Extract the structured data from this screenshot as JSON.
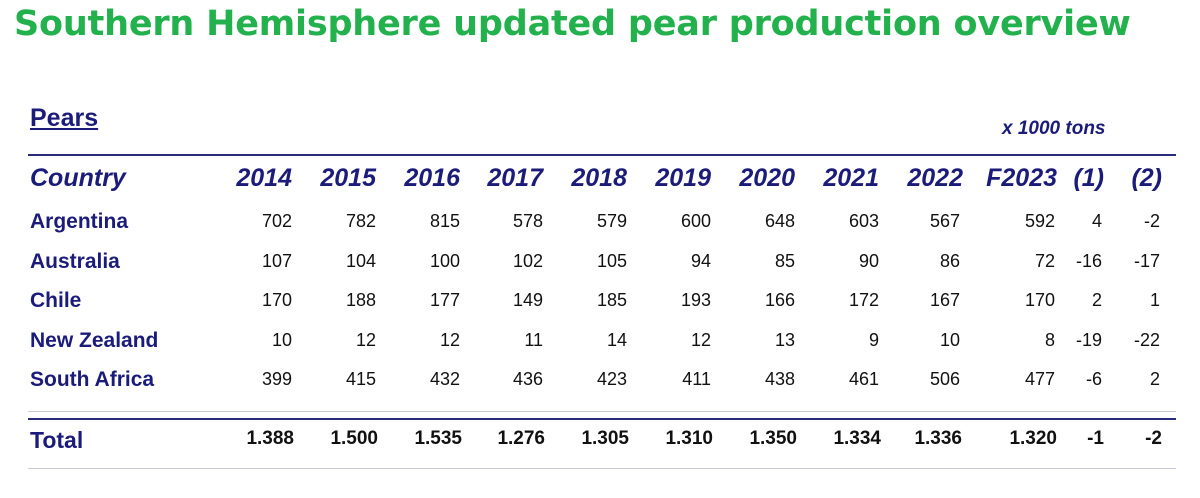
{
  "title": "Southern Hemisphere updated pear production overview",
  "section": "Pears",
  "units": "x 1000 tons",
  "columns": [
    "Country",
    "2014",
    "2015",
    "2016",
    "2017",
    "2018",
    "2019",
    "2020",
    "2021",
    "2022",
    "F2023",
    "(1)",
    "(2)"
  ],
  "rows": [
    {
      "country": "Argentina",
      "values": [
        "702",
        "782",
        "815",
        "578",
        "579",
        "600",
        "648",
        "603",
        "567",
        "592",
        "4",
        "-2"
      ]
    },
    {
      "country": "Australia",
      "values": [
        "107",
        "104",
        "100",
        "102",
        "105",
        "94",
        "85",
        "90",
        "86",
        "72",
        "-16",
        "-17"
      ]
    },
    {
      "country": "Chile",
      "values": [
        "170",
        "188",
        "177",
        "149",
        "185",
        "193",
        "166",
        "172",
        "167",
        "170",
        "2",
        "1"
      ]
    },
    {
      "country": "New Zealand",
      "values": [
        "10",
        "12",
        "12",
        "11",
        "14",
        "12",
        "13",
        "9",
        "10",
        "8",
        "-19",
        "-22"
      ]
    },
    {
      "country": "South Africa",
      "values": [
        "399",
        "415",
        "432",
        "436",
        "423",
        "411",
        "438",
        "461",
        "506",
        "477",
        "-6",
        "2"
      ]
    }
  ],
  "total": {
    "label": "Total",
    "values": [
      "1.388",
      "1.500",
      "1.535",
      "1.276",
      "1.305",
      "1.310",
      "1.350",
      "1.334",
      "1.336",
      "1.320",
      "-1",
      "-2"
    ]
  }
}
